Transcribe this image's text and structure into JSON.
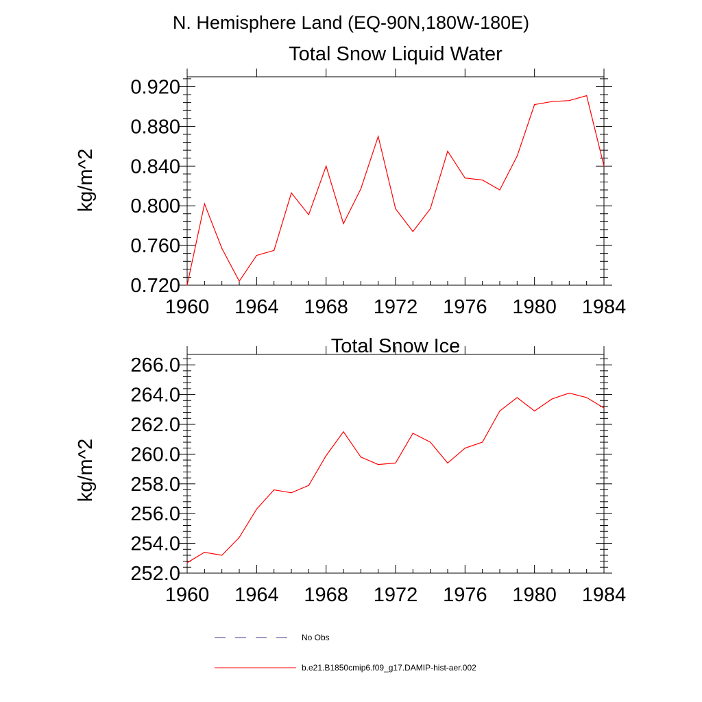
{
  "figure": {
    "title": "N. Hemisphere Land (EQ-90N,180W-180E)"
  },
  "legend": {
    "items": [
      {
        "label": "No Obs",
        "color": "#3b3b8f",
        "style": "dashed"
      },
      {
        "label": "b.e21.B1850cmip6.f09_g17.DAMIP-hist-aer.002",
        "color": "#ff0000",
        "style": "solid"
      }
    ]
  },
  "chart_data": [
    {
      "type": "line",
      "title": "Total Snow Liquid Water",
      "xlabel": "",
      "ylabel": "kg/m^2",
      "xlim": [
        1960,
        1984
      ],
      "ylim": [
        0.72,
        0.93
      ],
      "x_ticks": [
        1960,
        1964,
        1968,
        1972,
        1976,
        1980,
        1984
      ],
      "x_tick_labels": [
        "1960",
        "1964",
        "1968",
        "1972",
        "1976",
        "1980",
        "1984"
      ],
      "y_ticks": [
        0.72,
        0.76,
        0.8,
        0.84,
        0.88,
        0.92
      ],
      "y_tick_labels": [
        "0.720",
        "0.760",
        "0.800",
        "0.840",
        "0.880",
        "0.920"
      ],
      "grid": false,
      "series": [
        {
          "color": "#ff0000",
          "x": [
            1960,
            1961,
            1962,
            1963,
            1964,
            1965,
            1966,
            1967,
            1968,
            1969,
            1970,
            1971,
            1972,
            1973,
            1974,
            1975,
            1976,
            1977,
            1978,
            1979,
            1980,
            1981,
            1982,
            1983,
            1984
          ],
          "values": [
            0.72,
            0.802,
            0.757,
            0.724,
            0.75,
            0.755,
            0.813,
            0.791,
            0.84,
            0.782,
            0.817,
            0.87,
            0.797,
            0.774,
            0.797,
            0.855,
            0.828,
            0.826,
            0.816,
            0.85,
            0.902,
            0.905,
            0.906,
            0.911,
            0.84
          ]
        }
      ]
    },
    {
      "type": "line",
      "title": "Total Snow Ice",
      "xlabel": "",
      "ylabel": "kg/m^2",
      "xlim": [
        1960,
        1984
      ],
      "ylim": [
        252.0,
        266.7
      ],
      "x_ticks": [
        1960,
        1964,
        1968,
        1972,
        1976,
        1980,
        1984
      ],
      "x_tick_labels": [
        "1960",
        "1964",
        "1968",
        "1972",
        "1976",
        "1980",
        "1984"
      ],
      "y_ticks": [
        252,
        254,
        256,
        258,
        260,
        262,
        264,
        266
      ],
      "y_tick_labels": [
        "252.0",
        "254.0",
        "256.0",
        "258.0",
        "260.0",
        "262.0",
        "264.0",
        "266.0"
      ],
      "grid": false,
      "series": [
        {
          "color": "#ff0000",
          "x": [
            1960,
            1961,
            1962,
            1963,
            1964,
            1965,
            1966,
            1967,
            1968,
            1969,
            1970,
            1971,
            1972,
            1973,
            1974,
            1975,
            1976,
            1977,
            1978,
            1979,
            1980,
            1981,
            1982,
            1983,
            1984
          ],
          "values": [
            252.7,
            253.4,
            253.2,
            254.4,
            256.3,
            257.6,
            257.4,
            257.9,
            259.9,
            261.5,
            259.8,
            259.3,
            259.4,
            261.4,
            260.8,
            259.4,
            260.4,
            260.8,
            262.9,
            263.8,
            262.9,
            263.7,
            264.1,
            263.8,
            263.1
          ]
        }
      ]
    }
  ]
}
